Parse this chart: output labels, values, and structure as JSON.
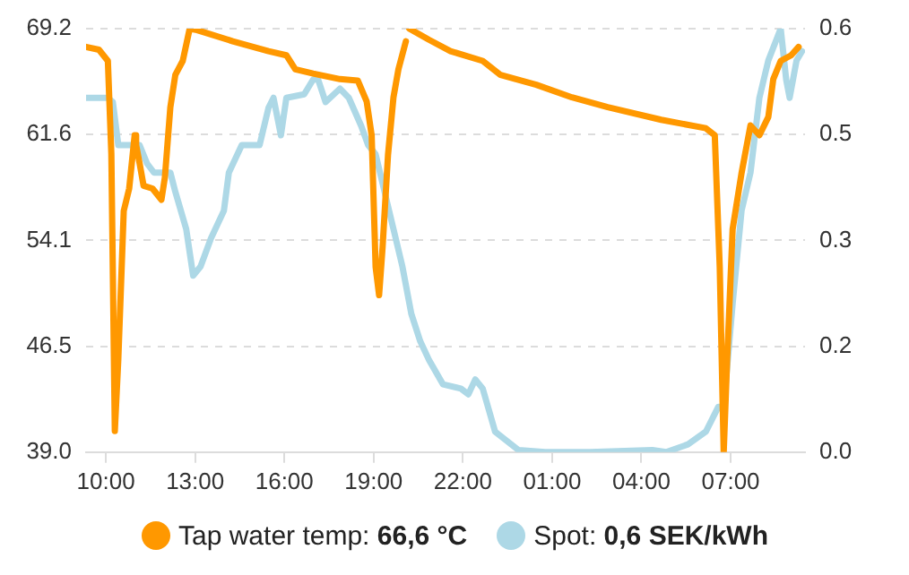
{
  "chart_data": {
    "type": "line",
    "xlim": [
      "--01-01T09:20",
      "--01-02T09:30"
    ],
    "xticks": [
      {
        "value": "--01-01T10:00",
        "label": "10:00"
      },
      {
        "value": "--01-01T13:00",
        "label": "13:00"
      },
      {
        "value": "--01-01T16:00",
        "label": "16:00"
      },
      {
        "value": "--01-01T19:00",
        "label": "19:00"
      },
      {
        "value": "--01-01T22:00",
        "label": "22:00"
      },
      {
        "value": "--01-02T01:00",
        "label": "01:00"
      },
      {
        "value": "--01-02T04:00",
        "label": "04:00"
      },
      {
        "value": "--01-02T07:00",
        "label": "07:00"
      }
    ],
    "ylim": [
      39.0,
      69.2
    ],
    "yticks": [
      {
        "value": 39,
        "label": "39.0"
      },
      {
        "value": 46.55,
        "label": "46.5"
      },
      54.1,
      {
        "value": 61.65,
        "label": "61.6"
      },
      69.2
    ],
    "y2lim": [
      0,
      0.6
    ],
    "y2ticks": [
      {
        "value": 0,
        "label": "0.0"
      },
      {
        "value": 0.15,
        "label": "0.2"
      },
      {
        "value": 0.3,
        "label": "0.3"
      },
      {
        "value": 0.45,
        "label": "0.5"
      },
      0.6
    ],
    "grid": "y",
    "legend": "bottom",
    "marker": "none",
    "line_style": "solid",
    "series": [
      {
        "name": "Tap water temp: 66,6 °C",
        "color": "#ff9800",
        "axis": "y",
        "x": [
          "--01-01T09:20",
          "--01-01T09:46",
          "--01-01T10:04",
          "--01-01T10:11",
          "--01-01T10:18",
          "--01-01T10:25",
          "--01-01T10:36",
          "--01-01T10:47",
          "--01-01T10:58",
          "--01-01T11:01",
          "--01-01T11:08",
          "--01-01T11:16",
          "--01-01T11:34",
          "--01-01T11:52",
          "--01-01T11:59",
          "--01-01T12:10",
          "--01-01T12:20",
          "--01-01T12:35",
          "--01-01T12:49",
          "--01-01T13:04",
          "--01-01T14:16",
          "--01-01T15:28",
          "--01-01T16:04",
          "--01-01T16:22",
          "--01-01T16:58",
          "--01-01T17:52",
          "--01-01T18:28",
          "--01-01T18:46",
          "--01-01T18:56",
          "--01-01T19:04",
          "--01-01T19:11",
          "--01-01T19:18",
          "--01-01T19:29",
          "--01-01T19:40",
          "--01-01T19:50",
          "--01-01T20:05",
          "--01-01T20:09",
          "--01-01T20:12",
          "--01-01T20:52",
          "--01-01T21:35",
          "--01-01T22:40",
          "--01-01T23:16",
          "--01-02T00:28",
          "--01-02T01:40",
          "--01-02T02:52",
          "--01-02T04:40",
          "--01-02T06:10",
          "--01-02T06:28",
          "--01-02T06:38",
          "--01-02T06:46",
          "--01-02T06:53",
          "--01-02T07:04",
          "--01-02T07:22",
          "--01-02T07:40",
          "--01-02T07:58",
          "--01-02T08:16",
          "--01-02T08:26",
          "--01-02T08:41",
          "--01-02T09:02",
          "--01-02T09:17"
        ],
        "values": [
          67.9,
          67.7,
          66.9,
          60.3,
          40.5,
          45.6,
          56.2,
          57.8,
          61.6,
          60.9,
          59.6,
          58.0,
          57.8,
          57.0,
          58.6,
          63.6,
          65.9,
          66.9,
          69.2,
          69.1,
          68.3,
          67.6,
          67.3,
          66.3,
          66.0,
          65.6,
          65.5,
          64.0,
          61.6,
          52.2,
          50.2,
          53.6,
          60.2,
          64.3,
          66.3,
          68.3,
          null,
          69.2,
          68.4,
          67.6,
          66.9,
          65.9,
          65.2,
          64.3,
          63.6,
          62.7,
          62.1,
          61.6,
          52.2,
          39.0,
          45.6,
          54.9,
          58.9,
          62.3,
          61.6,
          62.9,
          65.6,
          66.9,
          67.3,
          67.9
        ]
      },
      {
        "name": "Spot: 0,6 SEK/kWh",
        "color": "#add8e6",
        "axis": "y2",
        "x": [
          "--01-01T09:20",
          "--01-01T10:04",
          "--01-01T10:14",
          "--01-01T10:25",
          "--01-01T11:08",
          "--01-01T11:23",
          "--01-01T11:37",
          "--01-01T12:10",
          "--01-01T12:20",
          "--01-01T12:42",
          "--01-01T12:56",
          "--01-01T13:11",
          "--01-01T13:32",
          "--01-01T13:58",
          "--01-01T14:08",
          "--01-01T14:34",
          "--01-01T15:10",
          "--01-01T15:28",
          "--01-01T15:38",
          "--01-01T15:53",
          "--01-01T16:04",
          "--01-01T16:40",
          "--01-01T16:58",
          "--01-01T17:08",
          "--01-01T17:23",
          "--01-01T17:52",
          "--01-01T18:10",
          "--01-01T18:35",
          "--01-01T18:49",
          "--01-01T19:04",
          "--01-01T19:22",
          "--01-01T19:40",
          "--01-01T19:58",
          "--01-01T20:16",
          "--01-01T20:34",
          "--01-01T20:52",
          "--01-01T21:20",
          "--01-01T21:56",
          "--01-01T22:11",
          "--01-01T22:25",
          "--01-01T22:40",
          "--01-01T23:05",
          "--01-01T23:52",
          "--01-02T00:46",
          "--01-02T02:16",
          "--01-02T04:22",
          "--01-02T04:50",
          "--01-02T05:34",
          "--01-02T06:10",
          "--01-02T06:35",
          "--01-02T06:46",
          "--01-02T07:04",
          "--01-02T07:22",
          "--01-02T07:40",
          "--01-02T07:58",
          "--01-02T08:16",
          "--01-02T08:41",
          "--01-02T08:52",
          "--01-02T08:59",
          "--01-02T09:13",
          "--01-02T09:24"
        ],
        "values": [
          0.502,
          0.502,
          0.496,
          0.435,
          0.435,
          0.409,
          0.396,
          0.396,
          0.369,
          0.316,
          0.25,
          0.263,
          0.303,
          0.342,
          0.396,
          0.435,
          0.435,
          0.488,
          0.502,
          0.449,
          0.502,
          0.507,
          0.528,
          0.528,
          0.496,
          0.515,
          0.502,
          0.462,
          0.435,
          0.422,
          0.369,
          0.316,
          0.263,
          0.196,
          0.157,
          0.13,
          0.096,
          0.09,
          0.082,
          0.103,
          0.09,
          0.029,
          0.003,
          0.0,
          0.0,
          0.003,
          0.0,
          0.011,
          0.029,
          0.064,
          0.064,
          0.21,
          0.342,
          0.396,
          0.502,
          0.555,
          0.6,
          0.528,
          0.502,
          0.555,
          0.568
        ]
      }
    ]
  }
}
